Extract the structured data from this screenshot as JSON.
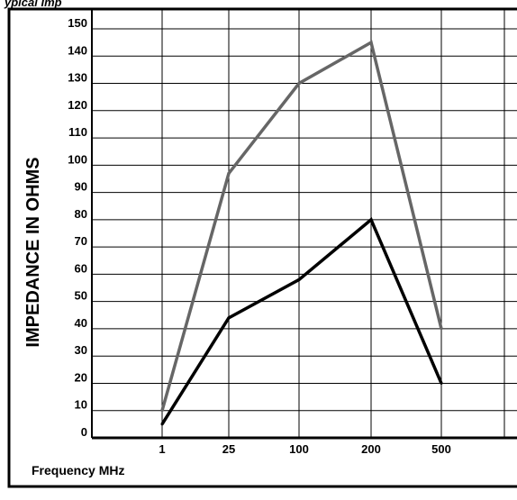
{
  "chart_data": {
    "type": "line",
    "title_fragment": "ypical Imp",
    "xlabel": "Frequency MHz",
    "ylabel": "IMPEDANCE IN OHMS",
    "categories": [
      "1",
      "25",
      "100",
      "200",
      "500"
    ],
    "ylim": [
      0,
      150
    ],
    "y_ticks": [
      0,
      10,
      20,
      30,
      40,
      50,
      60,
      70,
      80,
      90,
      100,
      110,
      120,
      130,
      140,
      150
    ],
    "grid": true,
    "series": [
      {
        "values": [
          10,
          97,
          130,
          145,
          40
        ],
        "color": "#666666"
      },
      {
        "values": [
          5,
          44,
          58,
          80,
          20
        ],
        "color": "#000000"
      }
    ]
  }
}
